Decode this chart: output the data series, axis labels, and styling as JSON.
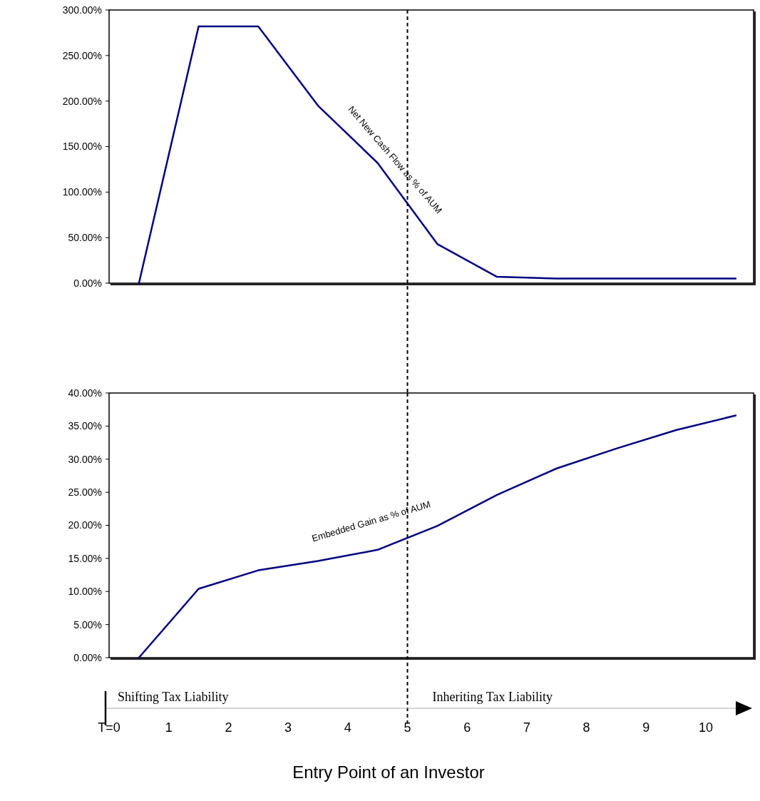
{
  "chart_data": [
    {
      "type": "line",
      "x": [
        0.5,
        1.5,
        2.5,
        3.5,
        4.5,
        5.5,
        6.5,
        7.5,
        8.5,
        9.5,
        10.5
      ],
      "xlim": [
        0,
        10.8
      ],
      "ylim": [
        0,
        300
      ],
      "yticks": [
        {
          "value": 0,
          "label": "0.00%"
        },
        {
          "value": 50,
          "label": "50.00%"
        },
        {
          "value": 100,
          "label": "100.00%"
        },
        {
          "value": 150,
          "label": "150.00%"
        },
        {
          "value": 200,
          "label": "200.00%"
        },
        {
          "value": 250,
          "label": "250.00%"
        },
        {
          "value": 300,
          "label": "300.00%"
        }
      ],
      "series": [
        {
          "name": "Net New Cash Flow as % of AUM",
          "color": "#000080",
          "values": [
            0,
            282,
            282,
            195,
            132,
            43,
            7,
            5,
            5,
            5,
            5
          ]
        }
      ],
      "ref_lines": [
        {
          "axis": "x",
          "value": 5,
          "line_style": "dashed"
        }
      ],
      "tick_labels": "y",
      "grid": false,
      "legend": false
    },
    {
      "type": "line",
      "x": [
        0.5,
        1.5,
        2.5,
        3.5,
        4.5,
        5.5,
        6.5,
        7.5,
        8.5,
        9.5,
        10.5
      ],
      "xlim": [
        0,
        10.8
      ],
      "ylim": [
        0,
        40
      ],
      "xticks": [
        {
          "value": 0,
          "label": "T=0"
        },
        1,
        2,
        3,
        4,
        5,
        6,
        7,
        8,
        9,
        10
      ],
      "yticks": [
        {
          "value": 0,
          "label": "0.00%"
        },
        {
          "value": 5,
          "label": "5.00%"
        },
        {
          "value": 10,
          "label": "10.00%"
        },
        {
          "value": 15,
          "label": "15.00%"
        },
        {
          "value": 20,
          "label": "20.00%"
        },
        {
          "value": 25,
          "label": "25.00%"
        },
        {
          "value": 30,
          "label": "30.00%"
        },
        {
          "value": 35,
          "label": "35.00%"
        },
        {
          "value": 40,
          "label": "40.00%"
        }
      ],
      "xlabel": "Entry Point of an Investor",
      "series": [
        {
          "name": "Embedded Gain as % of AUM",
          "color": "#000080",
          "values": [
            0,
            10.4,
            13.2,
            14.6,
            16.3,
            19.9,
            24.6,
            28.6,
            31.6,
            34.4,
            36.6
          ]
        }
      ],
      "ref_lines": [
        {
          "axis": "x",
          "value": 5,
          "line_style": "dashed"
        }
      ],
      "annotations": [
        "Shifting Tax Liability",
        "Inheriting Tax Liability"
      ],
      "grid": false,
      "legend": false
    }
  ]
}
